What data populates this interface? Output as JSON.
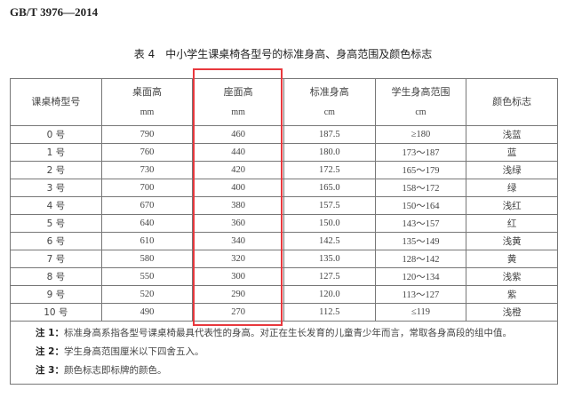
{
  "standard_id": "GB/T 3976—2014",
  "caption": "表 4　中小学生课桌椅各型号的标准身高、身高范围及颜色标志",
  "headers": [
    {
      "label": "课桌椅型号",
      "unit": ""
    },
    {
      "label": "桌面高",
      "unit": "mm"
    },
    {
      "label": "座面高",
      "unit": "mm"
    },
    {
      "label": "标准身高",
      "unit": "cm"
    },
    {
      "label": "学生身高范围",
      "unit": "cm"
    },
    {
      "label": "颜色标志",
      "unit": ""
    }
  ],
  "rows": [
    [
      "0 号",
      "790",
      "460",
      "187.5",
      "≥180",
      "浅蓝"
    ],
    [
      "1 号",
      "760",
      "440",
      "180.0",
      "173～187",
      "蓝"
    ],
    [
      "2 号",
      "730",
      "420",
      "172.5",
      "165～179",
      "浅绿"
    ],
    [
      "3 号",
      "700",
      "400",
      "165.0",
      "158～172",
      "绿"
    ],
    [
      "4 号",
      "670",
      "380",
      "157.5",
      "150～164",
      "浅红"
    ],
    [
      "5 号",
      "640",
      "360",
      "150.0",
      "143～157",
      "红"
    ],
    [
      "6 号",
      "610",
      "340",
      "142.5",
      "135～149",
      "浅黄"
    ],
    [
      "7 号",
      "580",
      "320",
      "135.0",
      "128～142",
      "黄"
    ],
    [
      "8 号",
      "550",
      "300",
      "127.5",
      "120～134",
      "浅紫"
    ],
    [
      "9 号",
      "520",
      "290",
      "120.0",
      "113～127",
      "紫"
    ],
    [
      "10 号",
      "490",
      "270",
      "112.5",
      "≤119",
      "浅橙"
    ]
  ],
  "notes": [
    {
      "label": "注 1：",
      "text": "标准身高系指各型号课桌椅最具代表性的身高。对正在生长发育的儿童青少年而言，常取各身高段的组中值。"
    },
    {
      "label": "注 2：",
      "text": "学生身高范围厘米以下四舍五入。"
    },
    {
      "label": "注 3：",
      "text": "颜色标志即标牌的颜色。"
    }
  ],
  "highlight_color": "#e8383d"
}
